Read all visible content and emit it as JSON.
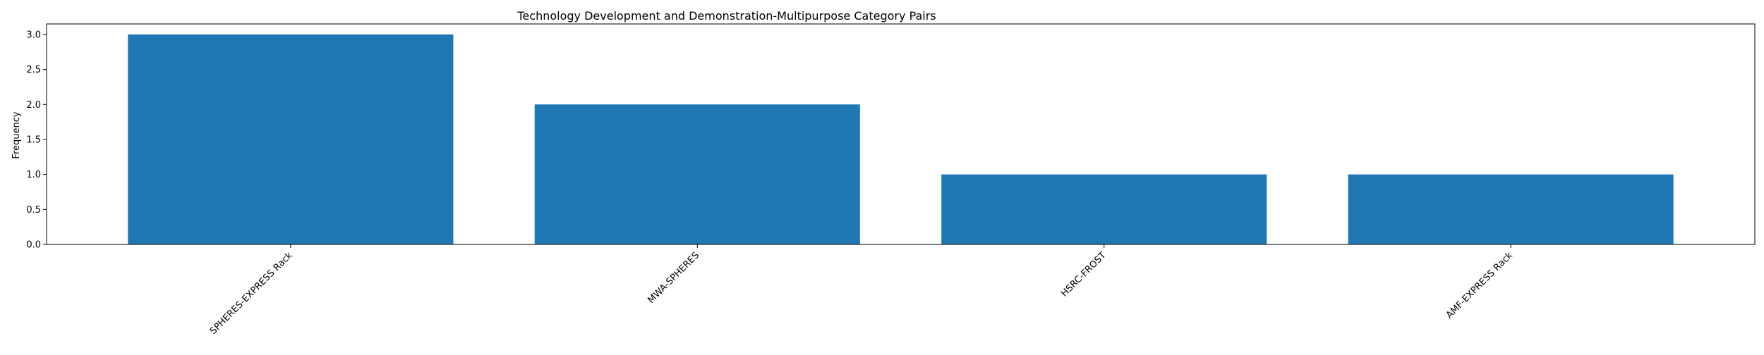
{
  "chart_data": {
    "type": "bar",
    "title": "Technology Development and Demonstration-Multipurpose Category Pairs",
    "xlabel": "",
    "ylabel": "Frequency",
    "categories": [
      "SPHERES-EXPRESS Rack",
      "MWA-SPHERES",
      "HSRC-FROST",
      "AMF-EXPRESS Rack"
    ],
    "values": [
      3,
      2,
      1,
      1
    ],
    "ylim": [
      0,
      3.15
    ],
    "yticks": [
      0.0,
      0.5,
      1.0,
      1.5,
      2.0,
      2.5,
      3.0
    ],
    "ytick_labels": [
      "0.0",
      "0.5",
      "1.0",
      "1.5",
      "2.0",
      "2.5",
      "3.0"
    ],
    "bar_color": "#1f77b4",
    "grid": false,
    "xtick_rotation_deg": 45
  }
}
